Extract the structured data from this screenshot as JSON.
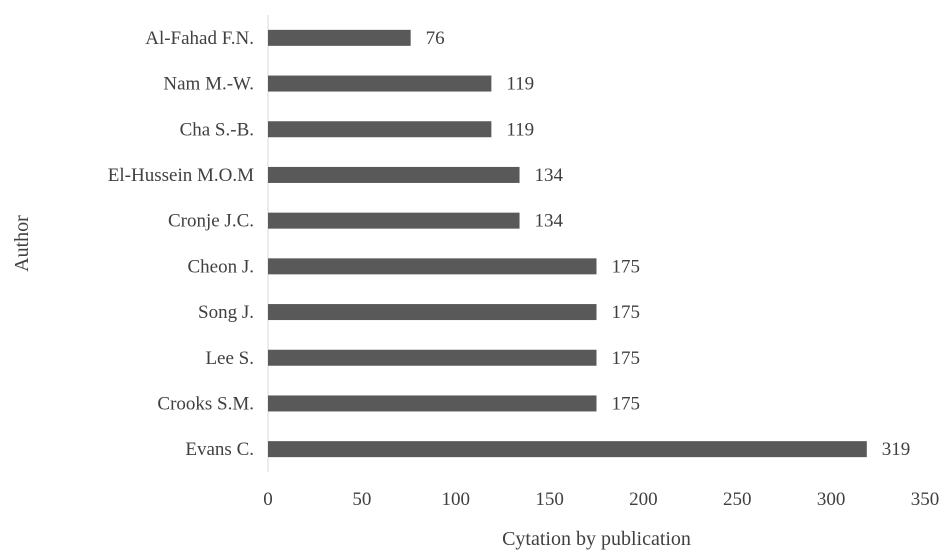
{
  "chart_data": {
    "type": "bar",
    "orientation": "horizontal",
    "categories": [
      "Al-Fahad F.N.",
      "Nam M.-W.",
      "Cha S.-B.",
      "El-Hussein M.O.M",
      "Cronje J.C.",
      "Cheon J.",
      "Song J.",
      "Lee S.",
      "Crooks S.M.",
      "Evans C."
    ],
    "values": [
      76,
      119,
      119,
      134,
      134,
      175,
      175,
      175,
      175,
      319
    ],
    "data_labels": [
      "76",
      "119",
      "119",
      "134",
      "134",
      "175",
      "175",
      "175",
      "175",
      "319"
    ],
    "xlabel": "Cytation by publication",
    "ylabel": "Author",
    "xlim": [
      0,
      350
    ],
    "xticks": [
      "0",
      "50",
      "100",
      "150",
      "200",
      "250",
      "300",
      "350"
    ],
    "grid": false,
    "bar_color": "#595959"
  }
}
